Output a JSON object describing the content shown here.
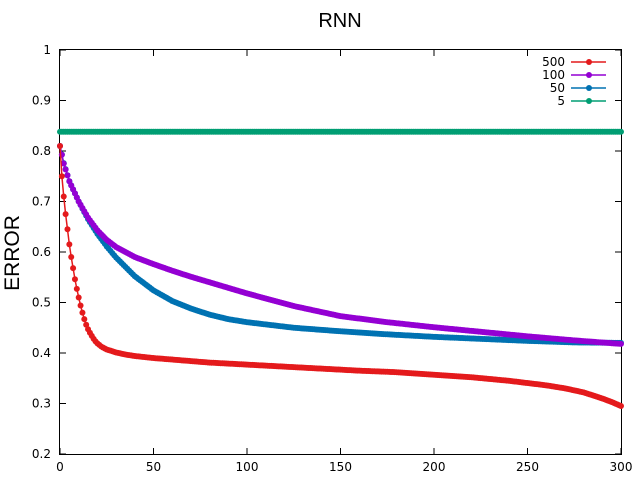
{
  "chart_data": {
    "type": "line",
    "title": "RNN",
    "xlabel": "",
    "ylabel": "ERROR",
    "xlim": [
      0,
      300
    ],
    "ylim": [
      0.2,
      1
    ],
    "x_ticks": [
      "0",
      "50",
      "100",
      "150",
      "200",
      "250",
      "300"
    ],
    "y_ticks": [
      "0.2",
      "0.3",
      "0.4",
      "0.5",
      "0.6",
      "0.7",
      "0.8",
      "0.9",
      "1"
    ],
    "grid": false,
    "legend_position": "top-right",
    "series": [
      {
        "name": "500",
        "color": "#e41a1c",
        "x": [
          0,
          1,
          2,
          3,
          4,
          5,
          6,
          7,
          8,
          9,
          10,
          11,
          12,
          13,
          14,
          15,
          16,
          17,
          18,
          19,
          20,
          22,
          25,
          30,
          35,
          40,
          50,
          60,
          70,
          80,
          90,
          100,
          120,
          140,
          160,
          180,
          200,
          220,
          240,
          260,
          270,
          280,
          285,
          290,
          295,
          300
        ],
        "values": [
          0.81,
          0.75,
          0.71,
          0.675,
          0.645,
          0.615,
          0.59,
          0.568,
          0.546,
          0.527,
          0.51,
          0.494,
          0.48,
          0.467,
          0.456,
          0.447,
          0.44,
          0.434,
          0.428,
          0.423,
          0.419,
          0.413,
          0.407,
          0.401,
          0.397,
          0.394,
          0.39,
          0.387,
          0.384,
          0.381,
          0.379,
          0.377,
          0.373,
          0.369,
          0.365,
          0.362,
          0.357,
          0.352,
          0.345,
          0.336,
          0.33,
          0.322,
          0.316,
          0.31,
          0.303,
          0.295
        ]
      },
      {
        "name": "100",
        "color": "#9400d3",
        "x": [
          0,
          2,
          5,
          10,
          15,
          20,
          25,
          30,
          40,
          50,
          60,
          70,
          80,
          90,
          100,
          125,
          150,
          175,
          200,
          225,
          250,
          275,
          300
        ],
        "values": [
          0.81,
          0.775,
          0.74,
          0.7,
          0.668,
          0.643,
          0.624,
          0.61,
          0.59,
          0.576,
          0.563,
          0.551,
          0.54,
          0.529,
          0.518,
          0.493,
          0.473,
          0.461,
          0.451,
          0.442,
          0.433,
          0.425,
          0.418
        ]
      },
      {
        "name": "50",
        "color": "#0072b2",
        "x": [
          0,
          2,
          5,
          10,
          15,
          20,
          25,
          30,
          40,
          50,
          60,
          70,
          80,
          90,
          100,
          125,
          150,
          175,
          200,
          225,
          250,
          275,
          300
        ],
        "values": [
          0.81,
          0.776,
          0.74,
          0.7,
          0.665,
          0.636,
          0.611,
          0.589,
          0.552,
          0.524,
          0.503,
          0.488,
          0.476,
          0.467,
          0.461,
          0.45,
          0.443,
          0.437,
          0.432,
          0.428,
          0.424,
          0.421,
          0.42
        ]
      },
      {
        "name": "5",
        "color": "#009e73",
        "x": [
          0,
          300
        ],
        "values": [
          0.838,
          0.838
        ]
      }
    ]
  }
}
